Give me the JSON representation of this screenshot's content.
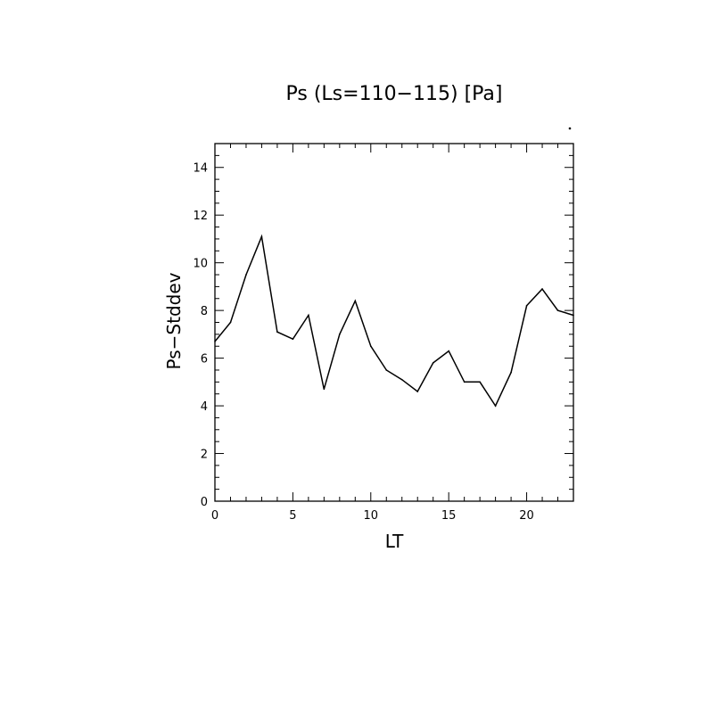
{
  "chart_data": {
    "type": "line",
    "title": "Ps (Ls=110−115) [Pa]",
    "xlabel": "LT",
    "ylabel": "Ps−Stddev",
    "xlim": [
      0,
      23
    ],
    "ylim": [
      0,
      15
    ],
    "x_ticks": [
      0,
      5,
      10,
      15,
      20
    ],
    "x_tick_labels": [
      "0",
      "5",
      "10",
      "15",
      "20"
    ],
    "x_minor_step": 1,
    "y_ticks": [
      0,
      2,
      4,
      6,
      8,
      10,
      12,
      14
    ],
    "y_tick_labels": [
      "0",
      "2",
      "4",
      "6",
      "8",
      "10",
      "12",
      "14"
    ],
    "y_minor_step": 0.5,
    "grid": false,
    "legend": "none",
    "series": [
      {
        "x": [
          0,
          1,
          2,
          3,
          4,
          5,
          6,
          7,
          8,
          9,
          10,
          11,
          12,
          13,
          14,
          15,
          16,
          17,
          18,
          19,
          20,
          21,
          22,
          23
        ],
        "values": [
          6.7,
          7.5,
          9.5,
          11.1,
          7.1,
          6.8,
          7.8,
          4.7,
          7.0,
          8.4,
          6.5,
          5.5,
          5.1,
          4.6,
          5.8,
          6.3,
          5.0,
          5.0,
          4.0,
          5.4,
          8.2,
          8.9,
          8.0,
          7.8
        ],
        "color": "#000000"
      }
    ]
  }
}
